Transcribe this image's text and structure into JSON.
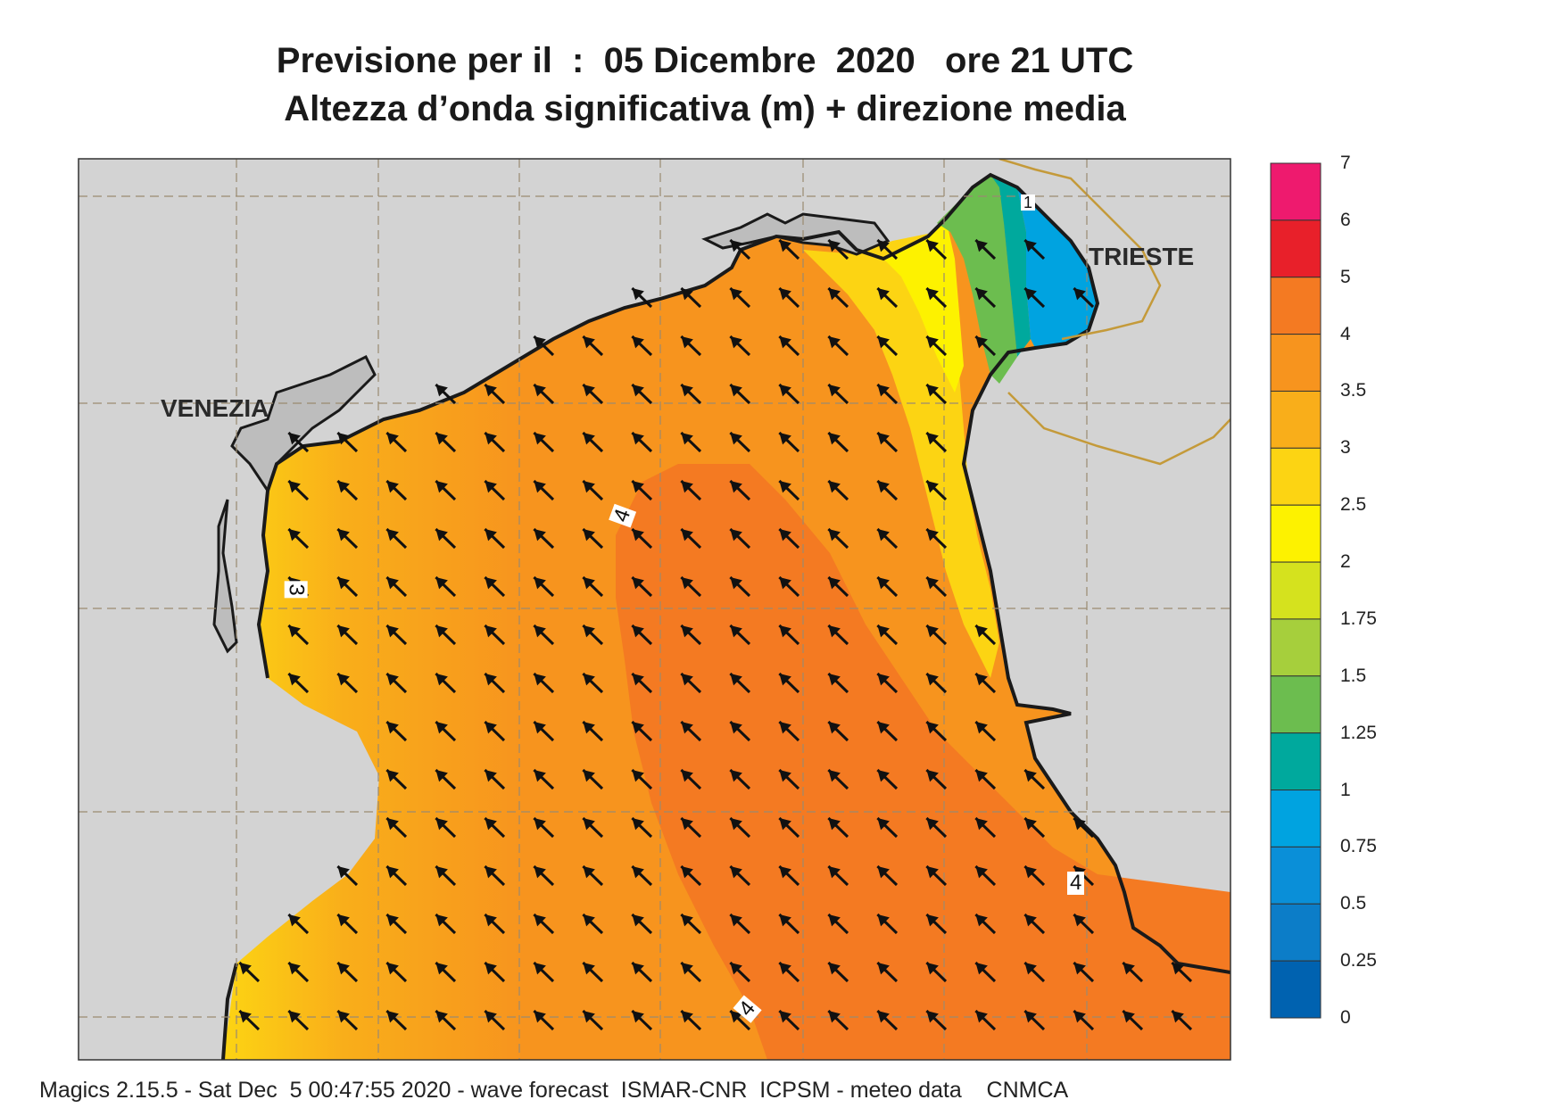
{
  "title": {
    "line1": "Previsione per il  :  05 Dicembre  2020   ore 21 UTC",
    "line2": "Altezza d’onda significativa (m) + direzione media"
  },
  "cities": {
    "venezia": "VENEZIA",
    "trieste": "TRIESTE"
  },
  "contour_labels": {
    "c1": "4",
    "c2": "3",
    "c3": "4",
    "c4": "4",
    "c5": "1"
  },
  "colorbar": {
    "labels": [
      "7",
      "6",
      "5",
      "4",
      "3.5",
      "3",
      "2.5",
      "2",
      "1.75",
      "1.5",
      "1.25",
      "1",
      "0.75",
      "0.5",
      "0.25",
      "0"
    ],
    "colors": [
      "#ee1a6e",
      "#e8202a",
      "#f47a22",
      "#f7941e",
      "#f9ae1a",
      "#fcd413",
      "#fdf200",
      "#d5e21e",
      "#a6cf3c",
      "#6cbd4f",
      "#00a99d",
      "#00a3e0",
      "#0a8fd8",
      "#0c7dc8",
      "#0062b0"
    ]
  },
  "legend_title": "",
  "wave_direction": "NW",
  "footer": "Magics 2.15.5 - Sat Dec  5 00:47:55 2020 - wave forecast  ISMAR-CNR  ICPSM - meteo data    CNMCA"
}
